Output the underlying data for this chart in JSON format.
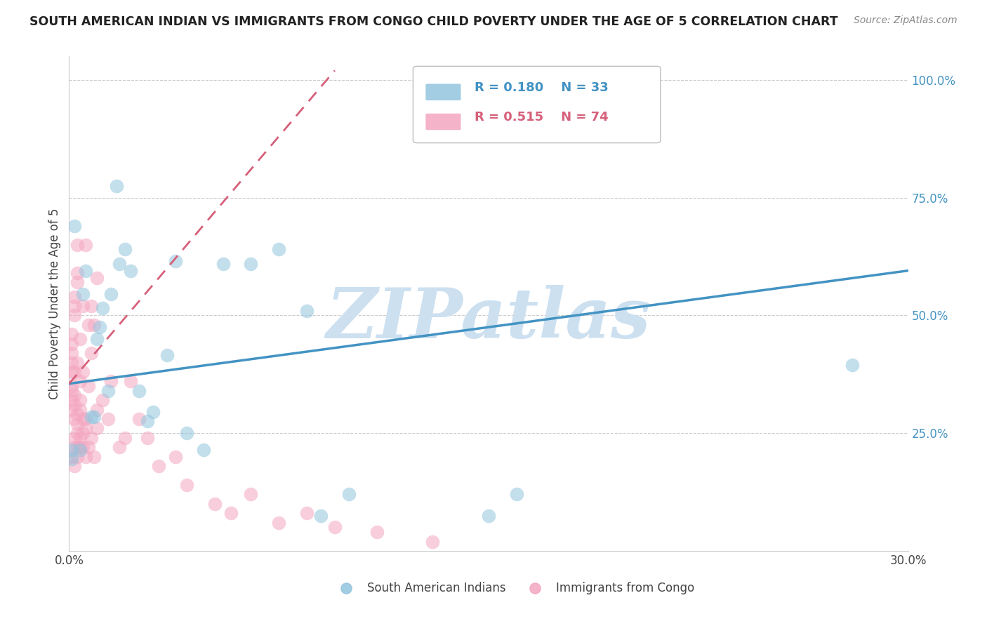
{
  "title": "SOUTH AMERICAN INDIAN VS IMMIGRANTS FROM CONGO CHILD POVERTY UNDER THE AGE OF 5 CORRELATION CHART",
  "source": "Source: ZipAtlas.com",
  "ylabel": "Child Poverty Under the Age of 5",
  "xlim": [
    0.0,
    0.3
  ],
  "ylim": [
    0.0,
    1.05
  ],
  "blue_R": 0.18,
  "blue_N": 33,
  "pink_R": 0.515,
  "pink_N": 74,
  "blue_color": "#92c5de",
  "pink_color": "#f4a6c0",
  "blue_line_color": "#4393c3",
  "pink_line_color": "#d6607a",
  "watermark": "ZIPatlas",
  "watermark_color": "#cce0f0",
  "legend_label_blue": "South American Indians",
  "legend_label_pink": "Immigrants from Congo",
  "blue_line_x0": 0.0,
  "blue_line_y0": 0.355,
  "blue_line_x1": 0.3,
  "blue_line_y1": 0.595,
  "pink_line_x0": 0.0,
  "pink_line_y0": 0.355,
  "pink_line_x1": 0.095,
  "pink_line_y1": 1.02,
  "blue_scatter_x": [
    0.001,
    0.001,
    0.002,
    0.004,
    0.005,
    0.006,
    0.008,
    0.009,
    0.01,
    0.011,
    0.012,
    0.014,
    0.015,
    0.017,
    0.018,
    0.02,
    0.022,
    0.025,
    0.028,
    0.03,
    0.035,
    0.038,
    0.042,
    0.048,
    0.055,
    0.065,
    0.075,
    0.085,
    0.09,
    0.1,
    0.15,
    0.16,
    0.28
  ],
  "blue_scatter_y": [
    0.195,
    0.215,
    0.69,
    0.215,
    0.545,
    0.595,
    0.285,
    0.285,
    0.45,
    0.475,
    0.515,
    0.34,
    0.545,
    0.775,
    0.61,
    0.64,
    0.595,
    0.34,
    0.275,
    0.295,
    0.415,
    0.615,
    0.25,
    0.215,
    0.61,
    0.61,
    0.64,
    0.51,
    0.075,
    0.12,
    0.075,
    0.12,
    0.395
  ],
  "pink_scatter_x": [
    0.001,
    0.001,
    0.001,
    0.001,
    0.001,
    0.001,
    0.001,
    0.001,
    0.001,
    0.001,
    0.002,
    0.002,
    0.002,
    0.002,
    0.002,
    0.002,
    0.002,
    0.002,
    0.002,
    0.002,
    0.003,
    0.003,
    0.003,
    0.003,
    0.003,
    0.003,
    0.003,
    0.003,
    0.003,
    0.004,
    0.004,
    0.004,
    0.004,
    0.004,
    0.004,
    0.005,
    0.005,
    0.005,
    0.005,
    0.005,
    0.006,
    0.006,
    0.006,
    0.006,
    0.007,
    0.007,
    0.007,
    0.008,
    0.008,
    0.008,
    0.009,
    0.009,
    0.01,
    0.01,
    0.01,
    0.012,
    0.014,
    0.015,
    0.018,
    0.02,
    0.022,
    0.025,
    0.028,
    0.032,
    0.038,
    0.042,
    0.052,
    0.058,
    0.065,
    0.075,
    0.085,
    0.095,
    0.11,
    0.13
  ],
  "pink_scatter_y": [
    0.35,
    0.38,
    0.4,
    0.42,
    0.44,
    0.46,
    0.3,
    0.32,
    0.34,
    0.2,
    0.28,
    0.31,
    0.33,
    0.5,
    0.52,
    0.54,
    0.22,
    0.24,
    0.38,
    0.18,
    0.25,
    0.27,
    0.29,
    0.57,
    0.59,
    0.65,
    0.2,
    0.22,
    0.4,
    0.3,
    0.32,
    0.45,
    0.22,
    0.24,
    0.36,
    0.25,
    0.28,
    0.52,
    0.22,
    0.38,
    0.26,
    0.28,
    0.65,
    0.2,
    0.22,
    0.35,
    0.48,
    0.24,
    0.42,
    0.52,
    0.2,
    0.48,
    0.26,
    0.3,
    0.58,
    0.32,
    0.28,
    0.36,
    0.22,
    0.24,
    0.36,
    0.28,
    0.24,
    0.18,
    0.2,
    0.14,
    0.1,
    0.08,
    0.12,
    0.06,
    0.08,
    0.05,
    0.04,
    0.02
  ]
}
